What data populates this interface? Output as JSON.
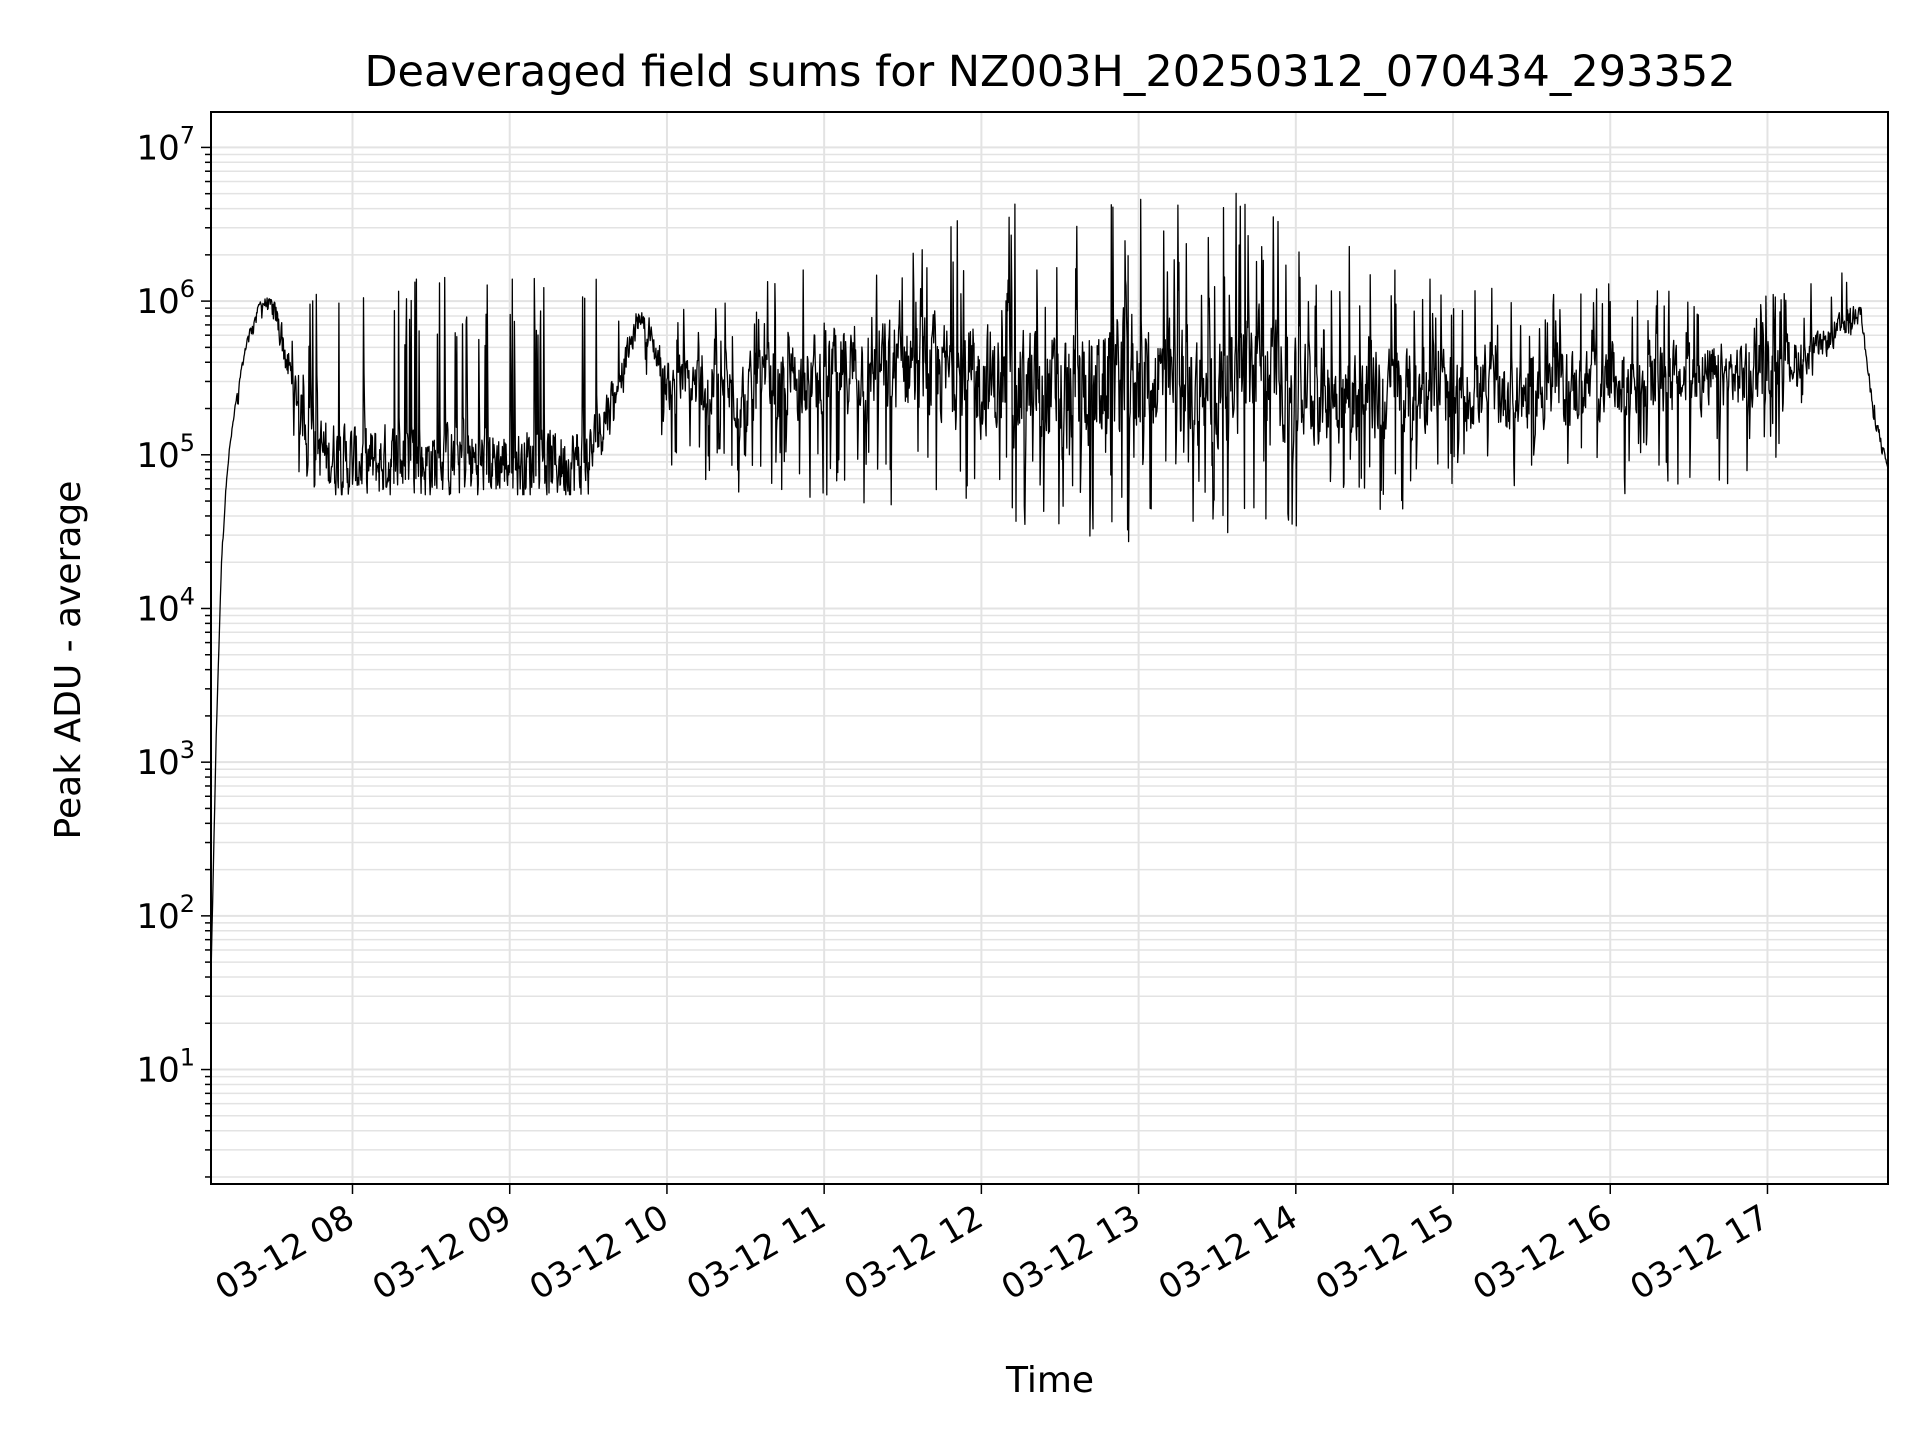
{
  "chart_data": {
    "type": "line",
    "title": "Deaveraged field sums for NZ003H_20250312_070434_293352",
    "xlabel": "Time",
    "ylabel": "Peak ADU - average",
    "yscale": "log",
    "ylim": [
      1.8,
      17000000
    ],
    "xlim": [
      "03-12 07:06",
      "03-12 17:46"
    ],
    "grid": true,
    "x_tick_labels": [
      "03-12 08",
      "03-12 09",
      "03-12 10",
      "03-12 11",
      "03-12 12",
      "03-12 13",
      "03-12 14",
      "03-12 15",
      "03-12 16",
      "03-12 17"
    ],
    "y_tick_labels": [
      {
        "base": "10",
        "exp": "1"
      },
      {
        "base": "10",
        "exp": "2"
      },
      {
        "base": "10",
        "exp": "3"
      },
      {
        "base": "10",
        "exp": "4"
      },
      {
        "base": "10",
        "exp": "5"
      },
      {
        "base": "10",
        "exp": "6"
      },
      {
        "base": "10",
        "exp": "7"
      }
    ],
    "series": [
      {
        "color": "#000000",
        "x": [
          "03-12 07:06",
          "03-12 07:08",
          "03-12 07:10",
          "03-12 07:12",
          "03-12 07:15",
          "03-12 07:20",
          "03-12 07:25",
          "03-12 07:30",
          "03-12 07:35",
          "03-12 07:40",
          "03-12 07:45",
          "03-12 07:50",
          "03-12 08:00",
          "03-12 08:30",
          "03-12 09:00",
          "03-12 09:30",
          "03-12 09:50",
          "03-12 10:00",
          "03-12 10:30",
          "03-12 11:00",
          "03-12 11:30",
          "03-12 12:00",
          "03-12 12:30",
          "03-12 12:58",
          "03-12 13:00",
          "03-12 13:30",
          "03-12 13:48",
          "03-12 14:00",
          "03-12 14:30",
          "03-12 15:00",
          "03-12 15:30",
          "03-12 16:00",
          "03-12 16:30",
          "03-12 17:00",
          "03-12 17:20",
          "03-12 17:33",
          "03-12 17:35",
          "03-12 17:40",
          "03-12 17:46"
        ],
        "y_mid": [
          40,
          1500,
          20000,
          80000,
          200000,
          600000,
          1000000,
          900000,
          400000,
          200000,
          120000,
          100000,
          90000,
          90000,
          90000,
          90000,
          800000,
          300000,
          250000,
          350000,
          400000,
          300000,
          250000,
          350000,
          350000,
          250000,
          400000,
          250000,
          250000,
          250000,
          250000,
          300000,
          300000,
          350000,
          500000,
          800000,
          1000000,
          200000,
          80000
        ],
        "y_peak": [
          40,
          1500,
          20000,
          90000,
          200000,
          700000,
          1100000,
          1000000,
          700000,
          500000,
          1400000,
          1500000,
          1500000,
          1500000,
          1500000,
          1500000,
          1000000,
          900000,
          1200000,
          1800000,
          3000000,
          4000000,
          5000000,
          8500000,
          5000000,
          5000000,
          6000000,
          3000000,
          2000000,
          1200000,
          1300000,
          1300000,
          1300000,
          1300000,
          1400000,
          2200000,
          1200000,
          300000,
          90000
        ],
        "y_trough": [
          40,
          1500,
          20000,
          60000,
          150000,
          500000,
          800000,
          300000,
          100000,
          70000,
          60000,
          55000,
          55000,
          55000,
          55000,
          55000,
          500000,
          80000,
          50000,
          50000,
          40000,
          30000,
          30000,
          25000,
          30000,
          30000,
          35000,
          30000,
          40000,
          45000,
          50000,
          55000,
          60000,
          70000,
          400000,
          600000,
          700000,
          150000,
          70000
        ]
      }
    ]
  }
}
